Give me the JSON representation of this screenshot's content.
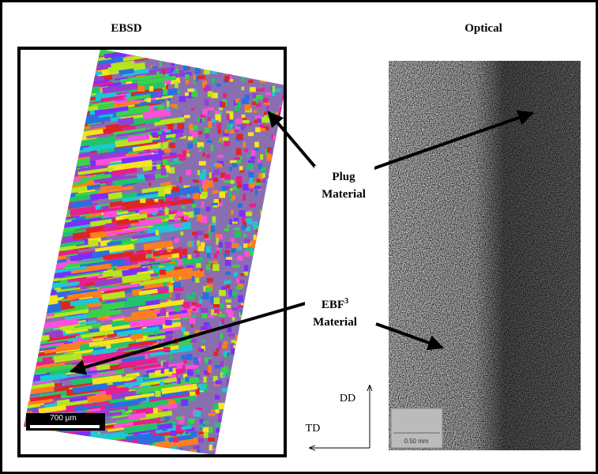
{
  "panels": {
    "left_title": "EBSD",
    "right_title": "Optical"
  },
  "annotations": {
    "plug": {
      "line1": "Plug",
      "line2": "Material"
    },
    "ebf": {
      "base": "EBF",
      "superscript": "3",
      "line2": "Material"
    }
  },
  "axes": {
    "vertical": "DD",
    "horizontal": "TD"
  },
  "scale_bars": {
    "ebsd": "700 µm",
    "optical": "0.50 mm"
  }
}
